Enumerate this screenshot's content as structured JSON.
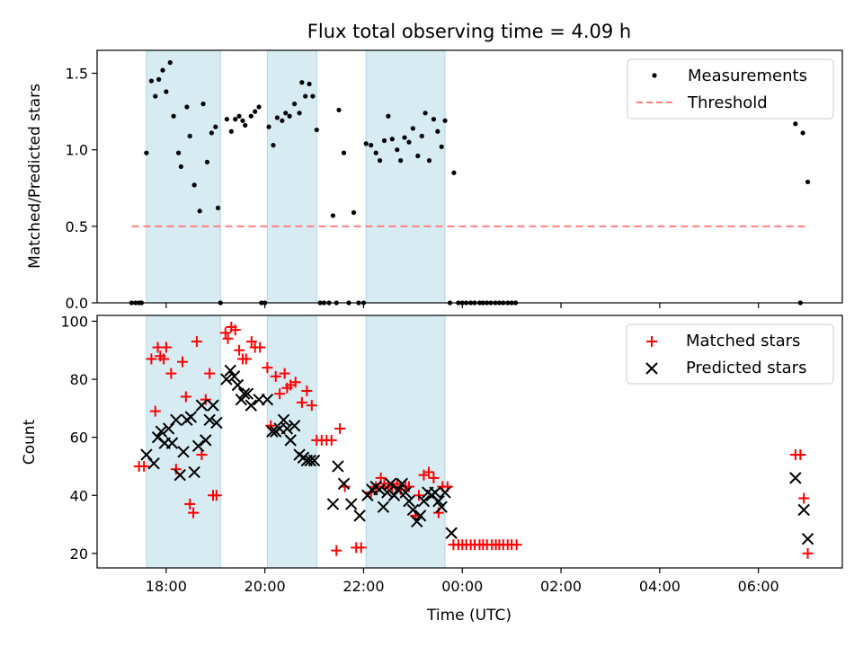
{
  "title": "Flux total observing time = 4.09 h",
  "chart_data": [
    {
      "panel": "top",
      "type": "scatter",
      "ylabel": "Matched/Predicted stars",
      "ylim": [
        0,
        1.65
      ],
      "yticks": [
        0.0,
        0.5,
        1.0,
        1.5
      ],
      "ytick_labels": [
        "0.0",
        "0.5",
        "1.0",
        "1.5"
      ],
      "legend_position": "top-right",
      "shaded_regions": [
        [
          17.6,
          19.1
        ],
        [
          20.05,
          21.05
        ],
        [
          22.05,
          23.65
        ]
      ],
      "threshold": {
        "name": "Threshold",
        "value": 0.5,
        "x_range": [
          17.3,
          31.0
        ],
        "color": "#ff7f7f"
      },
      "series": [
        {
          "name": "Measurements",
          "marker": "dot",
          "color": "#000000",
          "points": [
            [
              17.3,
              0
            ],
            [
              17.38,
              0
            ],
            [
              17.45,
              0
            ],
            [
              17.5,
              0
            ],
            [
              17.6,
              0.98
            ],
            [
              17.7,
              1.45
            ],
            [
              17.78,
              1.35
            ],
            [
              17.85,
              1.46
            ],
            [
              17.93,
              1.52
            ],
            [
              18.0,
              1.38
            ],
            [
              18.08,
              1.57
            ],
            [
              18.15,
              1.22
            ],
            [
              18.25,
              0.98
            ],
            [
              18.3,
              0.89
            ],
            [
              18.42,
              1.28
            ],
            [
              18.48,
              1.09
            ],
            [
              18.57,
              0.77
            ],
            [
              18.68,
              0.6
            ],
            [
              18.75,
              1.3
            ],
            [
              18.83,
              0.92
            ],
            [
              18.92,
              1.11
            ],
            [
              19.0,
              1.15
            ],
            [
              19.05,
              0.62
            ],
            [
              19.1,
              0
            ],
            [
              19.23,
              1.2
            ],
            [
              19.32,
              1.12
            ],
            [
              19.4,
              1.2
            ],
            [
              19.48,
              1.22
            ],
            [
              19.55,
              1.19
            ],
            [
              19.6,
              1.16
            ],
            [
              19.72,
              1.22
            ],
            [
              19.8,
              1.25
            ],
            [
              19.88,
              1.28
            ],
            [
              19.93,
              0
            ],
            [
              20.0,
              0
            ],
            [
              20.08,
              1.15
            ],
            [
              20.17,
              1.03
            ],
            [
              20.25,
              1.21
            ],
            [
              20.35,
              1.19
            ],
            [
              20.42,
              1.24
            ],
            [
              20.5,
              1.22
            ],
            [
              20.6,
              1.3
            ],
            [
              20.7,
              1.24
            ],
            [
              20.75,
              1.44
            ],
            [
              20.82,
              1.35
            ],
            [
              20.9,
              1.43
            ],
            [
              20.97,
              1.35
            ],
            [
              21.05,
              1.13
            ],
            [
              21.12,
              0
            ],
            [
              21.2,
              0
            ],
            [
              21.3,
              0
            ],
            [
              21.38,
              0.57
            ],
            [
              21.45,
              0
            ],
            [
              21.5,
              1.26
            ],
            [
              21.6,
              0.98
            ],
            [
              21.7,
              0
            ],
            [
              21.8,
              0.59
            ],
            [
              21.9,
              0
            ],
            [
              22.0,
              0
            ],
            [
              22.05,
              1.04
            ],
            [
              22.15,
              1.03
            ],
            [
              22.25,
              0.98
            ],
            [
              22.33,
              0.93
            ],
            [
              22.42,
              1.06
            ],
            [
              22.5,
              1.22
            ],
            [
              22.58,
              1.07
            ],
            [
              22.68,
              1.0
            ],
            [
              22.75,
              0.93
            ],
            [
              22.83,
              1.08
            ],
            [
              22.92,
              1.05
            ],
            [
              23.0,
              1.14
            ],
            [
              23.1,
              0.96
            ],
            [
              23.18,
              1.09
            ],
            [
              23.25,
              1.24
            ],
            [
              23.33,
              0.93
            ],
            [
              23.42,
              1.2
            ],
            [
              23.5,
              1.12
            ],
            [
              23.58,
              1.02
            ],
            [
              23.65,
              1.19
            ],
            [
              23.75,
              0
            ],
            [
              23.83,
              0.85
            ],
            [
              23.92,
              0
            ],
            [
              24.0,
              0
            ],
            [
              24.08,
              0
            ],
            [
              24.17,
              0
            ],
            [
              24.25,
              0
            ],
            [
              24.35,
              0
            ],
            [
              24.42,
              0
            ],
            [
              24.5,
              0
            ],
            [
              24.58,
              0
            ],
            [
              24.67,
              0
            ],
            [
              24.75,
              0
            ],
            [
              24.83,
              0
            ],
            [
              24.92,
              0
            ],
            [
              25.0,
              0
            ],
            [
              25.08,
              0
            ],
            [
              30.75,
              1.17
            ],
            [
              30.85,
              0
            ],
            [
              30.9,
              1.11
            ],
            [
              31.0,
              0.79
            ]
          ]
        }
      ]
    },
    {
      "panel": "bottom",
      "type": "scatter",
      "xlabel": "Time (UTC)",
      "ylabel": "Count",
      "xlim": [
        16.6,
        31.7
      ],
      "ylim": [
        15,
        102
      ],
      "xticks": [
        18,
        20,
        22,
        24,
        26,
        28,
        30
      ],
      "xtick_labels": [
        "18:00",
        "20:00",
        "22:00",
        "00:00",
        "02:00",
        "04:00",
        "06:00"
      ],
      "yticks": [
        20,
        40,
        60,
        80,
        100
      ],
      "ytick_labels": [
        "20",
        "40",
        "60",
        "80",
        "100"
      ],
      "legend_position": "top-right",
      "shaded_regions": [
        [
          17.6,
          19.1
        ],
        [
          20.05,
          21.05
        ],
        [
          22.05,
          23.65
        ]
      ],
      "series": [
        {
          "name": "Matched stars",
          "marker": "plus",
          "color": "#ff0000",
          "points": [
            [
              17.45,
              50
            ],
            [
              17.55,
              50
            ],
            [
              17.7,
              87
            ],
            [
              17.78,
              69
            ],
            [
              17.83,
              91
            ],
            [
              17.88,
              88
            ],
            [
              17.95,
              87
            ],
            [
              18.0,
              91
            ],
            [
              18.1,
              82
            ],
            [
              18.2,
              49
            ],
            [
              18.33,
              86
            ],
            [
              18.4,
              74
            ],
            [
              18.48,
              37
            ],
            [
              18.55,
              34
            ],
            [
              18.62,
              93
            ],
            [
              18.72,
              54
            ],
            [
              18.8,
              73
            ],
            [
              18.88,
              82
            ],
            [
              18.95,
              40
            ],
            [
              19.02,
              40
            ],
            [
              19.2,
              96
            ],
            [
              19.25,
              94
            ],
            [
              19.32,
              98
            ],
            [
              19.4,
              97
            ],
            [
              19.48,
              90
            ],
            [
              19.55,
              87
            ],
            [
              19.62,
              87
            ],
            [
              19.73,
              93
            ],
            [
              19.8,
              91
            ],
            [
              19.9,
              91
            ],
            [
              20.05,
              84
            ],
            [
              20.12,
              64
            ],
            [
              20.22,
              81
            ],
            [
              20.3,
              75
            ],
            [
              20.4,
              82
            ],
            [
              20.45,
              77
            ],
            [
              20.52,
              78
            ],
            [
              20.62,
              79
            ],
            [
              20.75,
              72
            ],
            [
              20.85,
              76
            ],
            [
              20.95,
              71
            ],
            [
              21.05,
              59
            ],
            [
              21.15,
              59
            ],
            [
              21.25,
              59
            ],
            [
              21.35,
              59
            ],
            [
              21.45,
              21
            ],
            [
              21.52,
              63
            ],
            [
              21.62,
              43
            ],
            [
              21.85,
              22
            ],
            [
              21.95,
              22
            ],
            [
              22.15,
              41
            ],
            [
              22.25,
              43
            ],
            [
              22.35,
              46
            ],
            [
              22.42,
              44
            ],
            [
              22.5,
              43
            ],
            [
              22.58,
              43
            ],
            [
              22.68,
              44
            ],
            [
              22.75,
              42
            ],
            [
              22.85,
              43
            ],
            [
              22.92,
              43
            ],
            [
              23.05,
              33
            ],
            [
              23.12,
              40
            ],
            [
              23.22,
              47
            ],
            [
              23.32,
              48
            ],
            [
              23.42,
              46
            ],
            [
              23.52,
              34
            ],
            [
              23.6,
              43
            ],
            [
              23.7,
              43
            ],
            [
              23.82,
              23
            ],
            [
              23.92,
              23
            ],
            [
              24.0,
              23
            ],
            [
              24.08,
              23
            ],
            [
              24.17,
              23
            ],
            [
              24.25,
              23
            ],
            [
              24.35,
              23
            ],
            [
              24.42,
              23
            ],
            [
              24.5,
              23
            ],
            [
              24.6,
              23
            ],
            [
              24.68,
              23
            ],
            [
              24.75,
              23
            ],
            [
              24.83,
              23
            ],
            [
              24.92,
              23
            ],
            [
              25.0,
              23
            ],
            [
              25.1,
              23
            ],
            [
              30.75,
              54
            ],
            [
              30.85,
              54
            ],
            [
              30.92,
              39
            ],
            [
              31.0,
              20
            ]
          ]
        },
        {
          "name": "Predicted stars",
          "marker": "x",
          "color": "#000000",
          "points": [
            [
              17.6,
              54
            ],
            [
              17.75,
              51
            ],
            [
              17.83,
              60
            ],
            [
              17.9,
              62
            ],
            [
              17.97,
              58
            ],
            [
              18.05,
              63
            ],
            [
              18.12,
              58
            ],
            [
              18.2,
              66
            ],
            [
              18.28,
              47
            ],
            [
              18.35,
              55
            ],
            [
              18.42,
              66
            ],
            [
              18.5,
              67
            ],
            [
              18.57,
              48
            ],
            [
              18.65,
              57
            ],
            [
              18.72,
              71
            ],
            [
              18.8,
              59
            ],
            [
              18.88,
              66
            ],
            [
              18.95,
              71
            ],
            [
              19.02,
              65
            ],
            [
              19.22,
              80
            ],
            [
              19.3,
              83
            ],
            [
              19.38,
              81
            ],
            [
              19.45,
              78
            ],
            [
              19.52,
              73
            ],
            [
              19.58,
              75
            ],
            [
              19.65,
              75
            ],
            [
              19.72,
              71
            ],
            [
              19.88,
              73
            ],
            [
              20.05,
              73
            ],
            [
              20.15,
              62
            ],
            [
              20.22,
              62
            ],
            [
              20.3,
              63
            ],
            [
              20.38,
              66
            ],
            [
              20.45,
              63
            ],
            [
              20.52,
              59
            ],
            [
              20.6,
              64
            ],
            [
              20.7,
              54
            ],
            [
              20.78,
              53
            ],
            [
              20.85,
              52
            ],
            [
              20.92,
              52
            ],
            [
              21.0,
              52
            ],
            [
              21.38,
              37
            ],
            [
              21.48,
              50
            ],
            [
              21.6,
              44
            ],
            [
              21.75,
              37
            ],
            [
              21.92,
              33
            ],
            [
              22.08,
              40
            ],
            [
              22.17,
              42
            ],
            [
              22.25,
              43
            ],
            [
              22.32,
              42
            ],
            [
              22.4,
              36
            ],
            [
              22.48,
              41
            ],
            [
              22.55,
              44
            ],
            [
              22.62,
              40
            ],
            [
              22.7,
              42
            ],
            [
              22.78,
              44
            ],
            [
              22.85,
              41
            ],
            [
              22.92,
              38
            ],
            [
              23.0,
              35
            ],
            [
              23.08,
              31
            ],
            [
              23.15,
              33
            ],
            [
              23.22,
              38
            ],
            [
              23.3,
              41
            ],
            [
              23.38,
              40
            ],
            [
              23.45,
              41
            ],
            [
              23.52,
              38
            ],
            [
              23.58,
              36
            ],
            [
              23.65,
              41
            ],
            [
              23.78,
              27
            ],
            [
              30.75,
              46
            ],
            [
              30.92,
              35
            ],
            [
              31.0,
              25
            ]
          ]
        }
      ]
    }
  ]
}
